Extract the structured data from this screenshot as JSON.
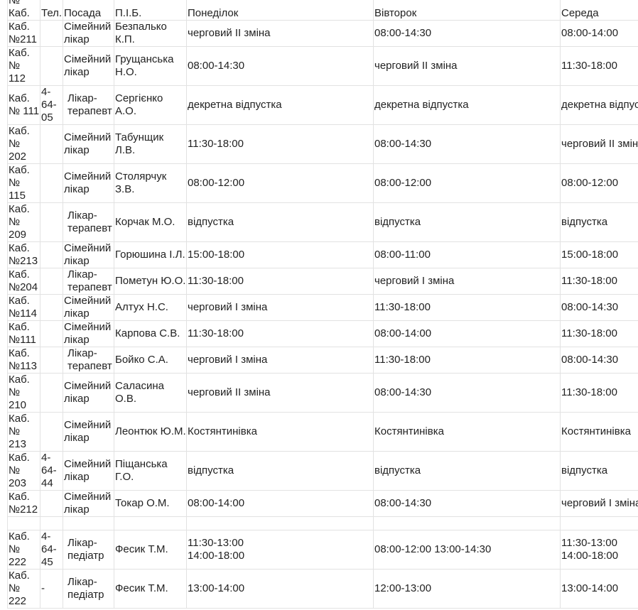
{
  "table": {
    "header": [
      "№ Каб.",
      "Тел.",
      "Посада",
      "П.І.Б.",
      "Понеділок",
      "Вівторок",
      "Середа"
    ],
    "rows": [
      [
        "Каб. №211",
        null,
        "Сімейний лікар",
        "Безпалько К.П.",
        "черговий ІІ зміна",
        "08:00-14:30",
        "08:00-14:00"
      ],
      [
        "Каб. № 112",
        null,
        "Сімейний лікар",
        "Грущанська Н.О.",
        "08:00-14:30",
        "черговий ІІ зміна",
        "11:30-18:00"
      ],
      [
        "Каб. № 111",
        "4-64-05",
        "Лікар-терапевт",
        "Сергієнко А.О.",
        "декретна відпустка",
        "декретна відпустка",
        "декретна відпустка"
      ],
      [
        "Каб. № 202",
        null,
        "Сімейний лікар",
        "Табунщик Л.В.",
        "11:30-18:00",
        "08:00-14:30",
        "черговий ІІ зміна"
      ],
      [
        "Каб. № 115",
        null,
        "Сімейний лікар",
        "Столярчук З.В.",
        "08:00-12:00",
        "08:00-12:00",
        "08:00-12:00"
      ],
      [
        "Каб. № 209",
        null,
        "Лікар-терапевт",
        "Корчак М.О.",
        "відпустка",
        "відпустка",
        "відпустка"
      ],
      [
        "Каб. №213",
        null,
        "Сімейний лікар",
        "Горюшина І.Л.",
        "15:00-18:00",
        "08:00-11:00",
        "15:00-18:00"
      ],
      [
        "Каб. №204",
        null,
        "Лікар-терапевт",
        "Пометун Ю.О.",
        "11:30-18:00",
        "черговий І зміна",
        "11:30-18:00"
      ],
      [
        "Каб. №114",
        null,
        "Сімейний лікар",
        "Алтух Н.С.",
        "черговий І зміна",
        "11:30-18:00",
        "08:00-14:30"
      ],
      [
        "Каб. №111",
        null,
        "Сімейний лікар",
        "Карпова С.В.",
        "11:30-18:00",
        "08:00-14:00",
        "11:30-18:00"
      ],
      [
        "Каб. №113",
        null,
        "Лікар-терапевт",
        "Бойко С.А.",
        "черговий І зміна",
        "11:30-18:00",
        "08:00-14:30"
      ],
      [
        "Каб. № 210",
        null,
        "Сімейний лікар",
        "Саласина О.В.",
        "черговий ІІ зміна",
        "08:00-14:30",
        "11:30-18:00"
      ],
      [
        "Каб. № 213",
        null,
        "Сімейний лікар",
        "Леонтюк Ю.М.",
        "Костянтинівка",
        "Костянтинівка",
        "Костянтинівка"
      ],
      [
        "Каб. № 203",
        "4-64-44",
        "Сімейний лікар",
        "Піщанська Г.О.",
        "відпустка",
        "відпустка",
        "відпустка"
      ],
      [
        "Каб. №212",
        null,
        "Сімейний лікар",
        "Токар О.М.",
        "08:00-14:00",
        "08:00-14:30",
        "черговий І зміна"
      ],
      [
        "Каб. № 222",
        "4-64-45",
        "Лікар-педіатр",
        "Фесик Т.М.",
        "11:30-13:00\n14:00-18:00",
        "08:00-12:00              13:00-14:30",
        "11:30-13:00\n14:00-18:00"
      ],
      [
        "Каб. № 222",
        "-",
        "Лікар-педіатр",
        "Фесик Т.М.",
        "13:00-14:00",
        "12:00-13:00",
        "13:00-14:00"
      ]
    ]
  }
}
